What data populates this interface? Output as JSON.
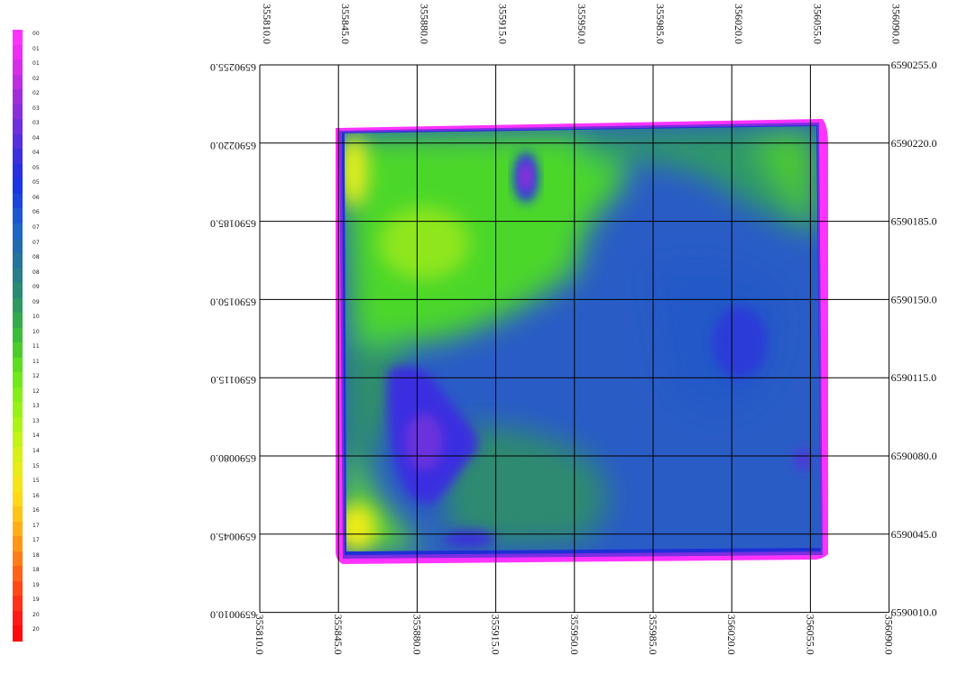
{
  "legend": {
    "labels": [
      "00",
      "01",
      "01",
      "02",
      "02",
      "03",
      "03",
      "04",
      "04",
      "05",
      "05",
      "06",
      "06",
      "07",
      "07",
      "08",
      "08",
      "09",
      "09",
      "10",
      "10",
      "11",
      "11",
      "12",
      "12",
      "13",
      "13",
      "14",
      "14",
      "15",
      "15",
      "16",
      "16",
      "17",
      "17",
      "18",
      "18",
      "19",
      "19",
      "20",
      "20"
    ],
    "colors": [
      "#ff33ff",
      "#ee2ef5",
      "#d62ee8",
      "#bd2ee0",
      "#a02ed8",
      "#8a2ed8",
      "#6e30dc",
      "#5530dc",
      "#3c30dc",
      "#2830e0",
      "#1a36e4",
      "#1a46dc",
      "#1e56d0",
      "#2066c4",
      "#226ab0",
      "#24749c",
      "#277e88",
      "#2a8a74",
      "#2e9a60",
      "#34aa4c",
      "#3cbc3a",
      "#4ccc2a",
      "#5edc20",
      "#70e81a",
      "#84ee18",
      "#98f218",
      "#acf418",
      "#c2f418",
      "#d6f018",
      "#e8ec18",
      "#f6e418",
      "#ffd818",
      "#ffc418",
      "#ffae18",
      "#ff9618",
      "#ff7c18",
      "#ff6218",
      "#ff4818",
      "#ff3018",
      "#ff1a18",
      "#ff0a0a"
    ]
  },
  "axes": {
    "x_ticks": [
      "355810.0",
      "355845.0",
      "355880.0",
      "355915.0",
      "355950.0",
      "355985.0",
      "356020.0",
      "356055.0",
      "356090.0"
    ],
    "y_ticks": [
      "6590255.0",
      "6590220.0",
      "6590185.0",
      "6590150.0",
      "6590115.0",
      "6590080.0",
      "6590045.0",
      "6590010.0"
    ]
  },
  "colors": {
    "border_magenta": "#ff33ff",
    "inner_purple": "#7a2ee0",
    "low_blue": "#2a5cc6",
    "mid_teal": "#2f8f6a",
    "high_green": "#4cd72a",
    "peak_yellow": "#e6f01c",
    "grid": "#000000"
  },
  "map": {
    "features": [
      "field-boundary",
      "high-yield-zone-nw",
      "low-yield-patch-n",
      "low-yield-patch-sw",
      "low-yield-zone-east",
      "high-yield-corner-sw"
    ]
  }
}
